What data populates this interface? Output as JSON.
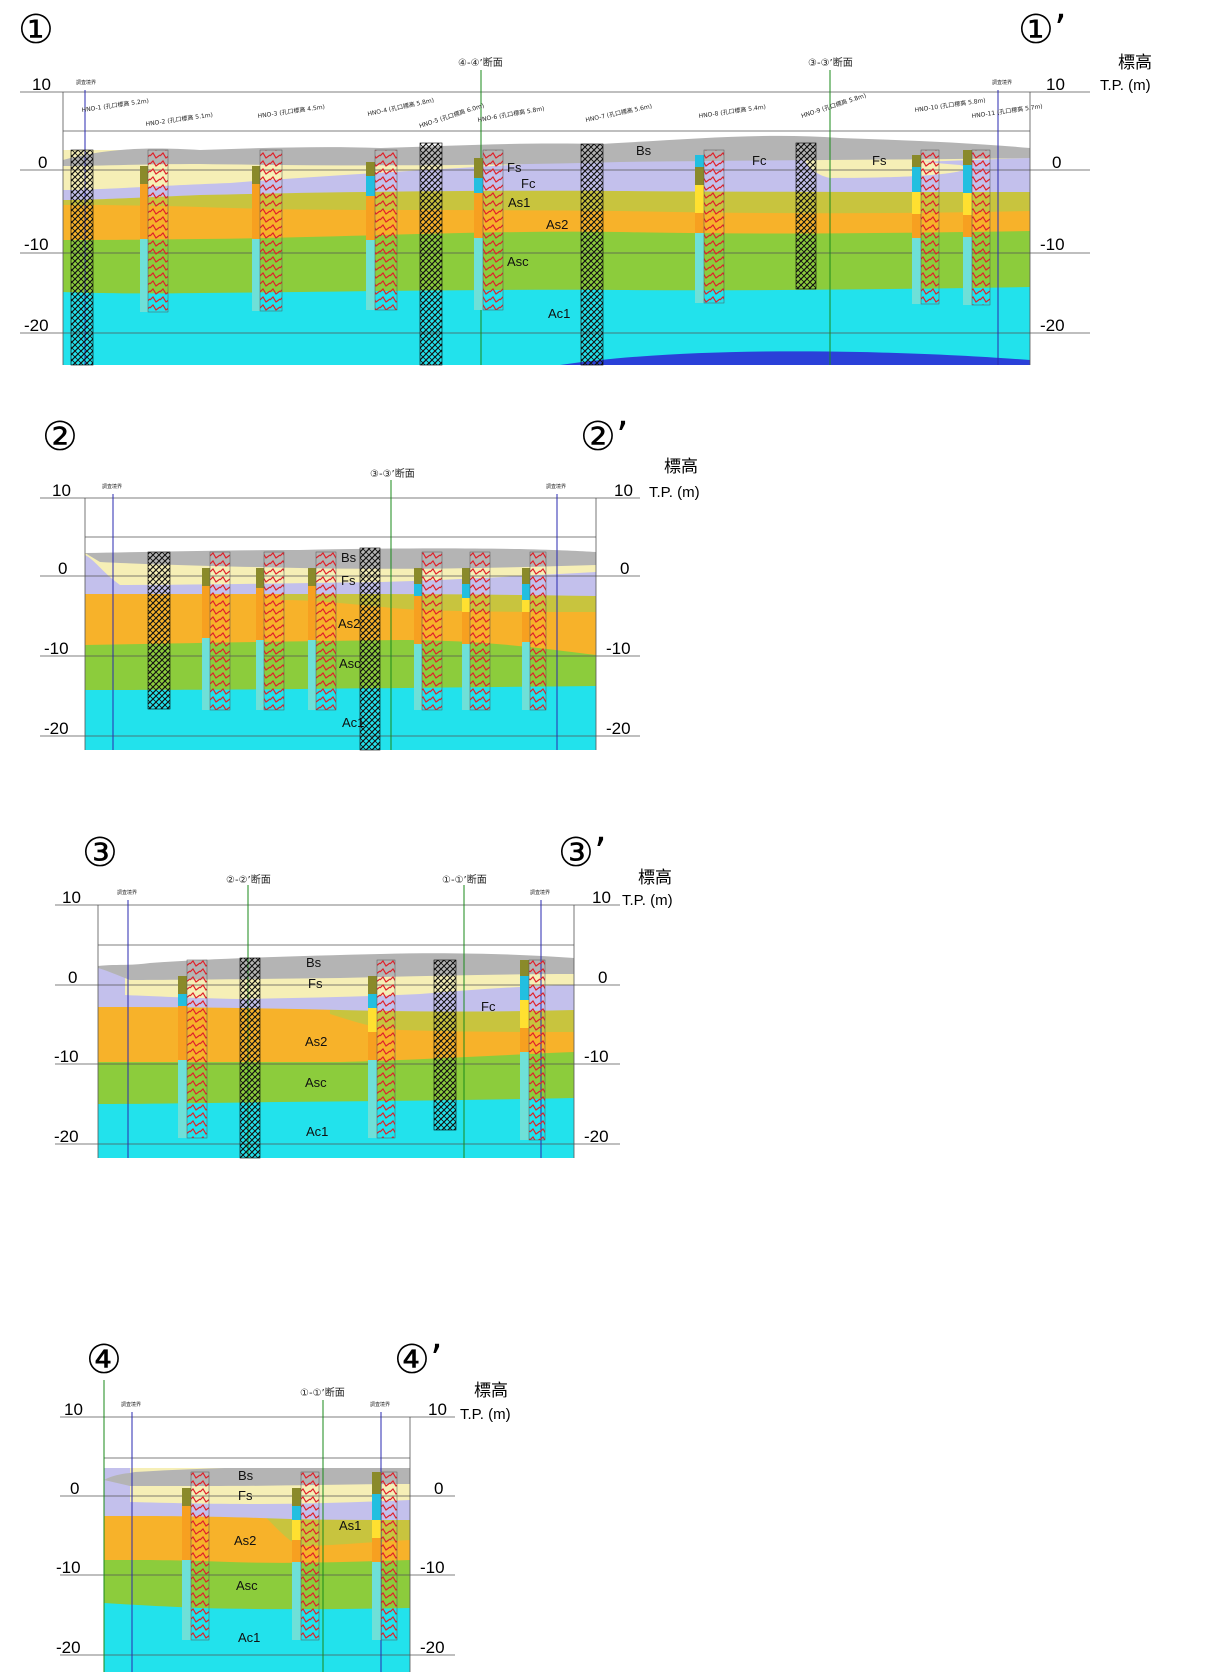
{
  "colors": {
    "Bs": "#b4b4b4",
    "Fs": "#f6efb6",
    "Fc": "#c3c0ec",
    "As1": "#c8c43e",
    "As2": "#f7b22a",
    "Asc": "#8ccc3c",
    "Ac1": "#22e2ec",
    "deep": "#2a40d8"
  },
  "sections": [
    {
      "start_mark": "①",
      "end_mark": "①’",
      "unit_label": "標高",
      "unit_sub": "T.P. (m)",
      "axis_ticks": [
        "10",
        "0",
        "-10",
        "-20"
      ],
      "boundary_labels": [
        "調査境界",
        "調査境界"
      ],
      "cross_section_labels": [
        "④-④’断面",
        "③-③’断面"
      ],
      "layer_labels": [
        "Bs",
        "Fs",
        "Fc",
        "As1",
        "As2",
        "Asc",
        "Ac1",
        "Fc",
        "Fs"
      ]
    },
    {
      "start_mark": "②",
      "end_mark": "②’",
      "unit_label": "標高",
      "unit_sub": "T.P. (m)",
      "axis_ticks": [
        "10",
        "0",
        "-10",
        "-20"
      ],
      "boundary_labels": [
        "調査境界",
        "調査境界"
      ],
      "cross_section_labels": [
        "③-③’断面"
      ],
      "layer_labels": [
        "Bs",
        "Fs",
        "As2",
        "Asc",
        "Ac1"
      ]
    },
    {
      "start_mark": "③",
      "end_mark": "③’",
      "unit_label": "標高",
      "unit_sub": "T.P. (m)",
      "axis_ticks": [
        "10",
        "0",
        "-10",
        "-20"
      ],
      "boundary_labels": [
        "調査境界",
        "調査境界"
      ],
      "cross_section_labels": [
        "②-②’断面",
        "①-①’断面"
      ],
      "layer_labels": [
        "Bs",
        "Fs",
        "Fc",
        "As2",
        "Asc",
        "Ac1"
      ]
    },
    {
      "start_mark": "④",
      "end_mark": "④’",
      "unit_label": "標高",
      "unit_sub": "T.P. (m)",
      "axis_ticks": [
        "10",
        "0",
        "-10",
        "-20"
      ],
      "boundary_labels": [
        "調査境界",
        "調査境界"
      ],
      "cross_section_labels": [
        "①-①’断面"
      ],
      "layer_labels": [
        "Bs",
        "Fs",
        "As1",
        "As2",
        "Asc",
        "Ac1"
      ]
    }
  ]
}
